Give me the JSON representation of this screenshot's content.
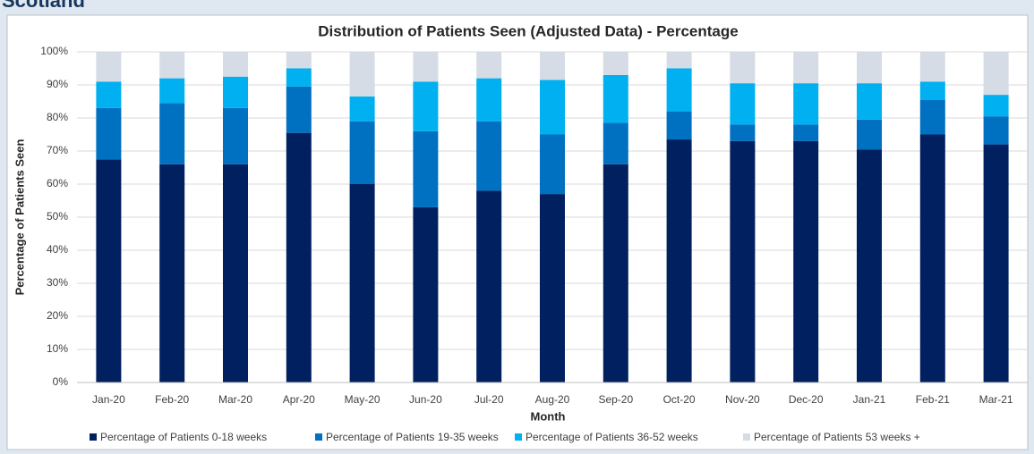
{
  "page_title": "Scotland",
  "chart_data": {
    "type": "stacked_bar",
    "title": "Distribution of Patients Seen (Adjusted Data) - Percentage",
    "x_label": "Month",
    "y_label": "Percentage of Patients Seen",
    "categories": [
      "Jan-20",
      "Feb-20",
      "Mar-20",
      "Apr-20",
      "May-20",
      "Jun-20",
      "Jul-20",
      "Aug-20",
      "Sep-20",
      "Oct-20",
      "Nov-20",
      "Dec-20",
      "Jan-21",
      "Feb-21",
      "Mar-21"
    ],
    "series": [
      {
        "name": "Percentage of Patients 0-18 weeks",
        "color": "#002060",
        "values": [
          67.5,
          66,
          66,
          75.5,
          60,
          53,
          58,
          57,
          66,
          73.5,
          73,
          73,
          70.5,
          75,
          72
        ]
      },
      {
        "name": "Percentage of Patients 19-35 weeks",
        "color": "#0070c0",
        "values": [
          15.5,
          18.5,
          17,
          14,
          19,
          23,
          21,
          18,
          12.5,
          8.5,
          5,
          5,
          9,
          10.5,
          8.5
        ]
      },
      {
        "name": "Percentage of Patients 36-52 weeks",
        "color": "#00b0f0",
        "values": [
          8,
          7.5,
          9.5,
          5.5,
          7.5,
          15,
          13,
          16.5,
          14.5,
          13,
          12.5,
          12.5,
          11,
          5.5,
          6.5
        ]
      },
      {
        "name": "Percentage of Patients 53 weeks +",
        "color": "#d6dce5",
        "values": [
          9,
          8,
          7.5,
          5,
          13.5,
          9,
          8,
          8.5,
          7,
          5,
          9.5,
          9.5,
          9.5,
          9,
          13
        ]
      }
    ],
    "ylim": [
      0,
      100
    ],
    "yticks": [
      {
        "value": 0,
        "label": "0%"
      },
      {
        "value": 10,
        "label": "10%"
      },
      {
        "value": 20,
        "label": "20%"
      },
      {
        "value": 30,
        "label": "30%"
      },
      {
        "value": 40,
        "label": "40%"
      },
      {
        "value": 50,
        "label": "50%"
      },
      {
        "value": 60,
        "label": "60%"
      },
      {
        "value": 70,
        "label": "70%"
      },
      {
        "value": 80,
        "label": "80%"
      },
      {
        "value": 90,
        "label": "90%"
      },
      {
        "value": 100,
        "label": "100%"
      }
    ],
    "legend": "bottom"
  }
}
